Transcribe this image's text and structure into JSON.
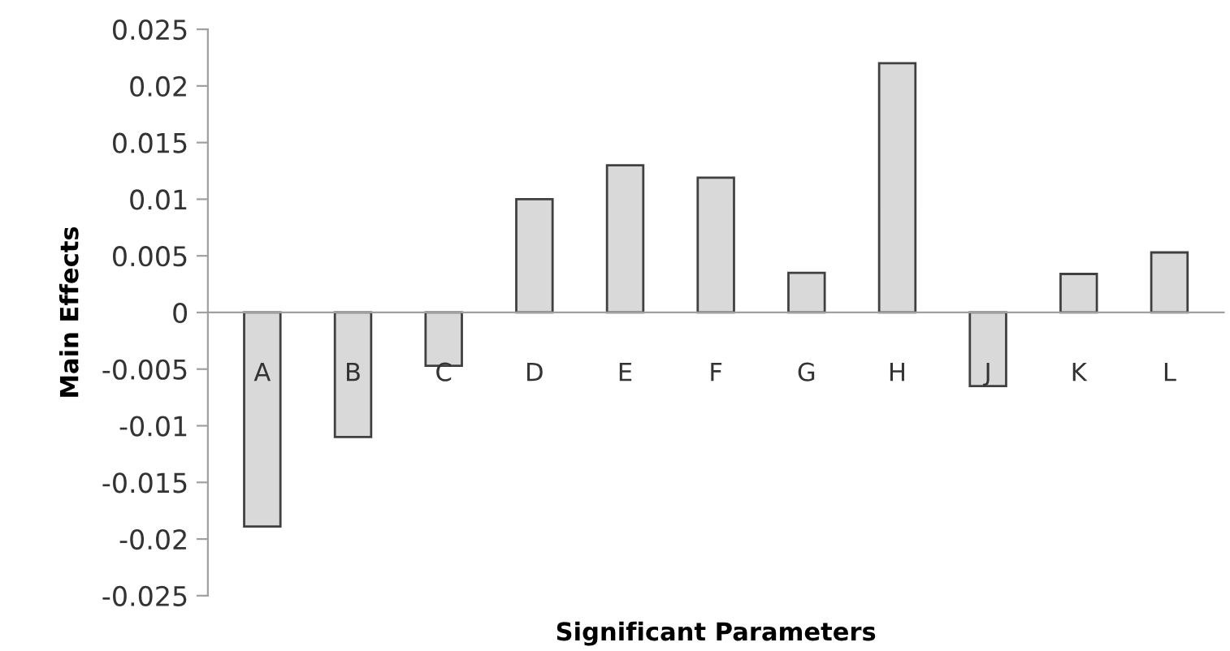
{
  "chart_data": {
    "type": "bar",
    "xlabel": "Significant Parameters",
    "ylabel": "Main Effects",
    "categories": [
      "A",
      "B",
      "C",
      "D",
      "E",
      "F",
      "G",
      "H",
      "J",
      "K",
      "L"
    ],
    "values": [
      -0.0189,
      -0.011,
      -0.0047,
      0.01,
      0.013,
      0.0119,
      0.0035,
      0.022,
      -0.0065,
      0.0034,
      0.0053
    ],
    "color": "#d9d9d9",
    "ylim": [
      -0.025,
      0.025
    ],
    "yticks": [
      {
        "value": -0.025,
        "label": "-0.025"
      },
      {
        "value": -0.02,
        "label": "-0.02"
      },
      {
        "value": -0.015,
        "label": "-0.015"
      },
      {
        "value": -0.01,
        "label": "-0.01"
      },
      {
        "value": -0.005,
        "label": "-0.005"
      },
      0,
      0.005,
      0.01,
      0.015,
      0.02,
      0.025
    ],
    "grid": false
  }
}
